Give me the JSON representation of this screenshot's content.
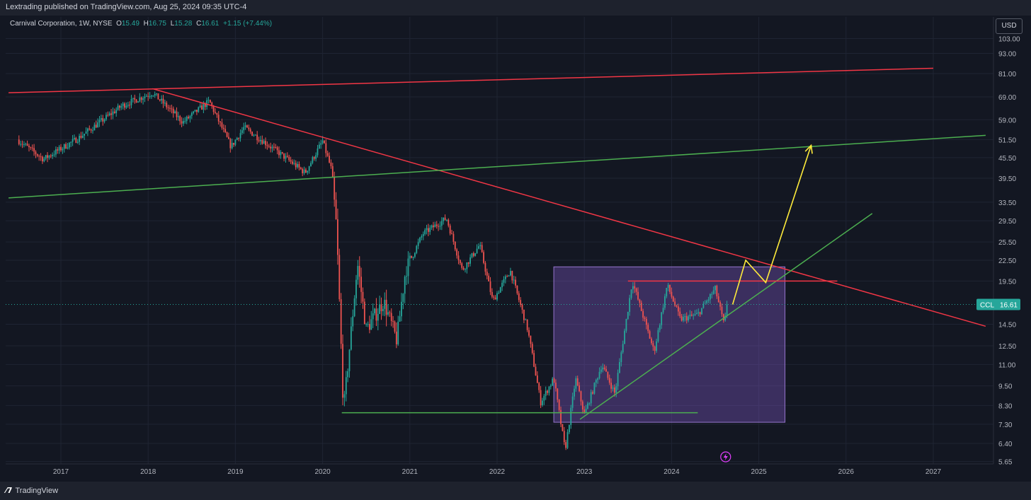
{
  "header": {
    "publish_text": "Lextrading published on TradingView.com, Aug 25, 2024 09:35 UTC-4"
  },
  "legend": {
    "title": "Carnival Corporation, 1W, NYSE",
    "o_label": "O",
    "o_value": "15.49",
    "h_label": "H",
    "h_value": "16.75",
    "l_label": "L",
    "l_value": "15.28",
    "c_label": "C",
    "c_value": "16.61",
    "change": "+1.15 (+7.44%)"
  },
  "currency_button": "USD",
  "price_tag": {
    "symbol": "CCL",
    "value": "16.61"
  },
  "footer": {
    "brand": "TradingView"
  },
  "colors": {
    "background": "#131722",
    "up": "#26a69a",
    "down": "#ef5350",
    "red_line": "#f23645",
    "green_line": "#4caf50",
    "yellow": "#ffeb3b",
    "box_fill": "#7e57c2"
  },
  "icons": {
    "event": "lightning-icon",
    "logo": "tradingview-logo-icon"
  },
  "chart_data": {
    "type": "candlestick",
    "symbol": "CCL",
    "interval": "1W",
    "scale": "log",
    "grid": true,
    "x_ticks": [
      "2017",
      "2018",
      "2019",
      "2020",
      "2021",
      "2022",
      "2023",
      "2024",
      "2025",
      "2026",
      "2027"
    ],
    "y_ticks": [
      "103.00",
      "93.00",
      "81.00",
      "69.00",
      "59.00",
      "51.50",
      "45.50",
      "39.50",
      "33.50",
      "29.50",
      "25.50",
      "22.50",
      "19.50",
      "16.61",
      "14.50",
      "12.50",
      "11.00",
      "9.50",
      "8.30",
      "7.30",
      "6.40",
      "5.65"
    ],
    "ylim": [
      5.65,
      103
    ],
    "price_anchors": [
      {
        "date": "2016.5",
        "price": 51.5
      },
      {
        "date": "2016.8",
        "price": 45
      },
      {
        "date": "2017.2",
        "price": 52
      },
      {
        "date": "2017.7",
        "price": 65
      },
      {
        "date": "2018.05",
        "price": 71
      },
      {
        "date": "2018.4",
        "price": 58
      },
      {
        "date": "2018.7",
        "price": 67
      },
      {
        "date": "2018.95",
        "price": 49
      },
      {
        "date": "2019.1",
        "price": 56
      },
      {
        "date": "2019.5",
        "price": 47
      },
      {
        "date": "2019.8",
        "price": 41
      },
      {
        "date": "2020.0",
        "price": 51
      },
      {
        "date": "2020.1",
        "price": 42
      },
      {
        "date": "2020.16",
        "price": 28
      },
      {
        "date": "2020.24",
        "price": 8.0
      },
      {
        "date": "2020.4",
        "price": 22
      },
      {
        "date": "2020.5",
        "price": 14
      },
      {
        "date": "2020.7",
        "price": 17
      },
      {
        "date": "2020.85",
        "price": 13
      },
      {
        "date": "2020.95",
        "price": 21
      },
      {
        "date": "2021.15",
        "price": 27
      },
      {
        "date": "2021.42",
        "price": 30
      },
      {
        "date": "2021.6",
        "price": 21
      },
      {
        "date": "2021.8",
        "price": 25
      },
      {
        "date": "2021.95",
        "price": 17
      },
      {
        "date": "2022.15",
        "price": 21
      },
      {
        "date": "2022.35",
        "price": 14
      },
      {
        "date": "2022.5",
        "price": 8.5
      },
      {
        "date": "2022.65",
        "price": 10
      },
      {
        "date": "2022.78",
        "price": 6.1
      },
      {
        "date": "2022.9",
        "price": 10
      },
      {
        "date": "2023.0",
        "price": 7.8
      },
      {
        "date": "2023.2",
        "price": 11
      },
      {
        "date": "2023.35",
        "price": 9
      },
      {
        "date": "2023.55",
        "price": 19.5
      },
      {
        "date": "2023.8",
        "price": 12
      },
      {
        "date": "2023.95",
        "price": 19
      },
      {
        "date": "2024.1",
        "price": 15
      },
      {
        "date": "2024.3",
        "price": 15.5
      },
      {
        "date": "2024.5",
        "price": 18.5
      },
      {
        "date": "2024.6",
        "price": 14.5
      },
      {
        "date": "2024.65",
        "price": 16.61
      }
    ],
    "last_price": 16.61,
    "drawings": [
      {
        "kind": "trendline",
        "color": "red",
        "from": {
          "date": "2016.4",
          "price": 71
        },
        "to": {
          "date": "2027.0",
          "price": 84
        }
      },
      {
        "kind": "trendline",
        "color": "red",
        "from": {
          "date": "2018.05",
          "price": 73
        },
        "to": {
          "date": "2027.6",
          "price": 14.3
        }
      },
      {
        "kind": "trendline",
        "color": "green",
        "from": {
          "date": "2016.4",
          "price": 34.5
        },
        "to": {
          "date": "2027.6",
          "price": 53
        }
      },
      {
        "kind": "trendline",
        "color": "green",
        "from": {
          "date": "2022.95",
          "price": 7.55
        },
        "to": {
          "date": "2026.3",
          "price": 31
        }
      },
      {
        "kind": "horizontal",
        "color": "green",
        "from": {
          "date": "2020.22",
          "price": 7.9
        },
        "to": {
          "date": "2024.3",
          "price": 7.9
        }
      },
      {
        "kind": "horizontal",
        "color": "red",
        "from": {
          "date": "2023.5",
          "price": 19.5
        },
        "to": {
          "date": "2025.9",
          "price": 19.5
        }
      },
      {
        "kind": "rectangle",
        "color": "purple",
        "from": {
          "date": "2022.65",
          "price": 21.5
        },
        "to": {
          "date": "2025.3",
          "price": 7.4
        }
      },
      {
        "kind": "path_arrow",
        "color": "yellow",
        "points": [
          {
            "date": "2024.7",
            "price": 16.61
          },
          {
            "date": "2024.85",
            "price": 22.5
          },
          {
            "date": "2025.08",
            "price": 19.3
          },
          {
            "date": "2025.6",
            "price": 49.5
          }
        ]
      }
    ]
  }
}
